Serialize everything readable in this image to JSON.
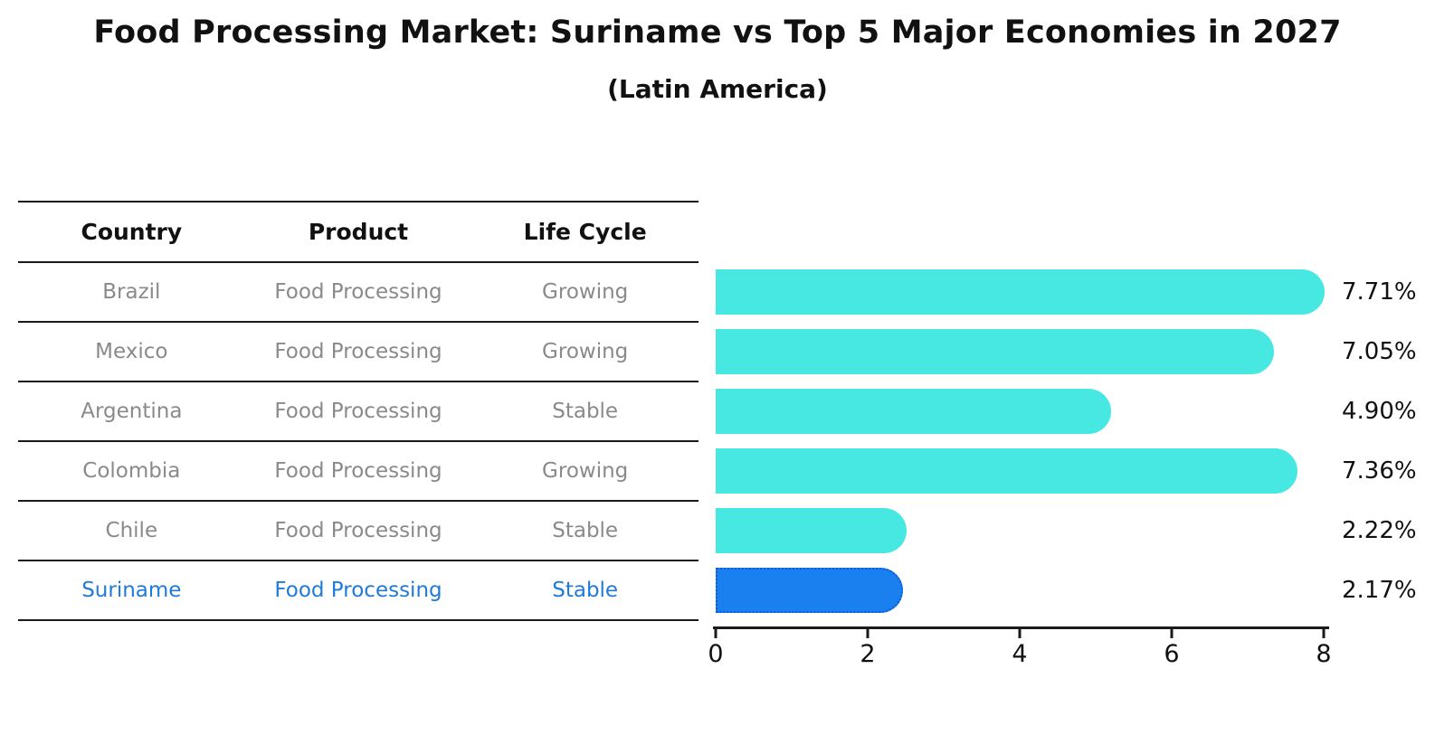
{
  "title": "Food Processing Market: Suriname vs Top 5 Major Economies in 2027",
  "subtitle": "(Latin America)",
  "table": {
    "headers": [
      "Country",
      "Product",
      "Life Cycle"
    ],
    "rows": [
      {
        "country": "Brazil",
        "product": "Food Processing",
        "life_cycle": "Growing",
        "highlight": false
      },
      {
        "country": "Mexico",
        "product": "Food Processing",
        "life_cycle": "Growing",
        "highlight": false
      },
      {
        "country": "Argentina",
        "product": "Food Processing",
        "life_cycle": "Stable",
        "highlight": false
      },
      {
        "country": "Colombia",
        "product": "Food Processing",
        "life_cycle": "Growing",
        "highlight": false
      },
      {
        "country": "Chile",
        "product": "Food Processing",
        "life_cycle": "Stable",
        "highlight": false
      },
      {
        "country": "Suriname",
        "product": "Food Processing",
        "life_cycle": "Stable",
        "highlight": true
      }
    ]
  },
  "chart_data": {
    "type": "bar",
    "orientation": "horizontal",
    "title": "Food Processing Market: Suriname vs Top 5 Major Economies in 2027",
    "subtitle": "(Latin America)",
    "categories": [
      "Brazil",
      "Mexico",
      "Argentina",
      "Colombia",
      "Chile",
      "Suriname"
    ],
    "values": [
      7.71,
      7.05,
      4.9,
      7.36,
      2.22,
      2.17
    ],
    "value_labels": [
      "7.71%",
      "7.05%",
      "4.90%",
      "7.36%",
      "2.22%",
      "2.17%"
    ],
    "highlight_category": "Suriname",
    "xlim": [
      0,
      8
    ],
    "x_ticks": [
      "0",
      "2",
      "4",
      "6",
      "8"
    ],
    "grid": false,
    "legend": false
  },
  "colors": {
    "bar_default": "#48e8e2",
    "bar_highlight": "#1a80f0",
    "bar_highlight_border": "#0a5bd6",
    "highlight_text": "#1f7ad9",
    "row_text": "#8a8a8a",
    "header_text": "#111111",
    "axis": "#1a1a1a"
  }
}
